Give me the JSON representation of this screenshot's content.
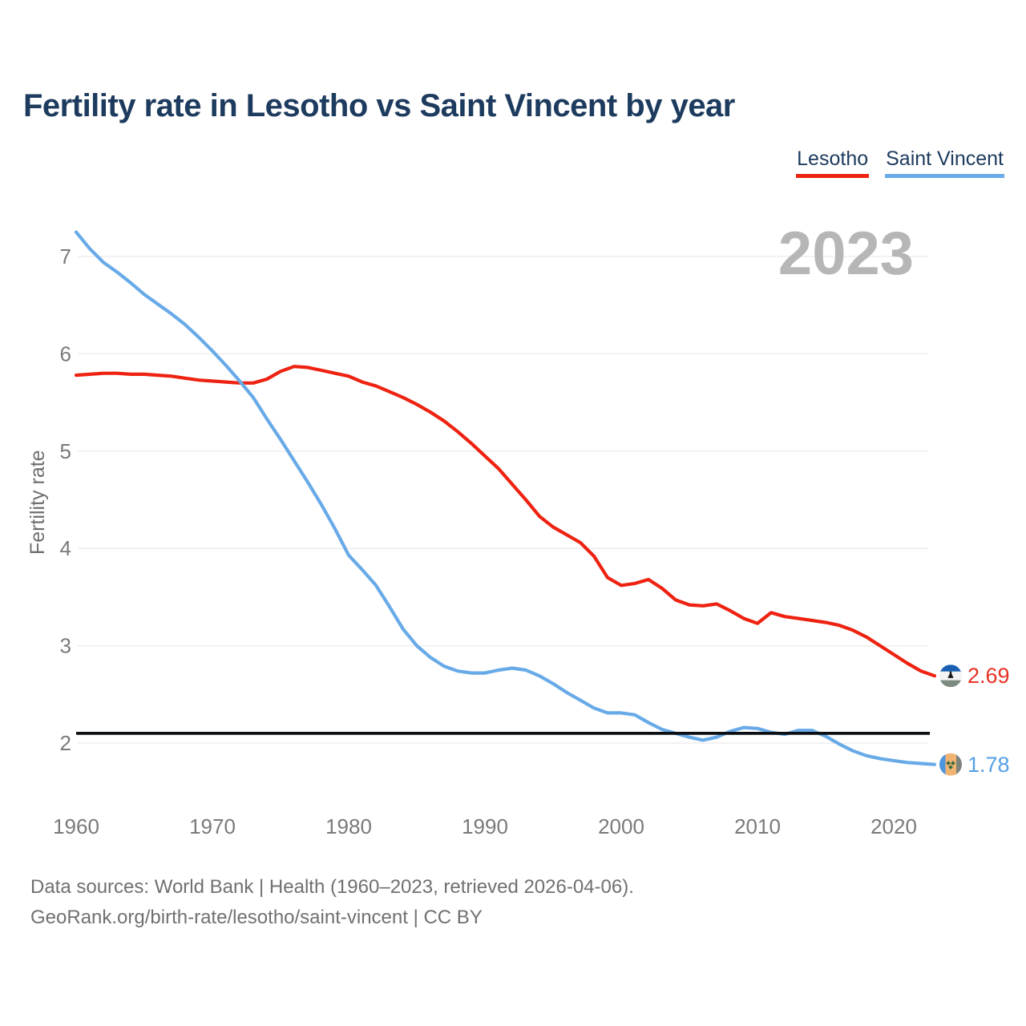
{
  "title": "Fertility rate in Lesotho vs Saint Vincent by year",
  "watermark": "2023",
  "legend": [
    {
      "label": "Lesotho",
      "color": "#ee2211"
    },
    {
      "label": "Saint Vincent",
      "color": "#68aae8"
    }
  ],
  "y_axis": {
    "label": "Fertility rate",
    "ticks": [
      7,
      6,
      5,
      4,
      3,
      2
    ]
  },
  "x_axis": {
    "ticks": [
      1960,
      1970,
      1980,
      1990,
      2000,
      2010,
      2020
    ]
  },
  "end_labels": [
    {
      "series": "Lesotho",
      "value": "2.69"
    },
    {
      "series": "Saint Vincent",
      "value": "1.78"
    }
  ],
  "footer": {
    "line1": "Data sources: World Bank | Health (1960–2023, retrieved 2026-04-06).",
    "line2": "GeoRank.org/birth-rate/lesotho/saint-vincent | CC BY"
  },
  "chart_data": {
    "type": "line",
    "title": "Fertility rate in Lesotho vs Saint Vincent by year",
    "xlabel": "",
    "ylabel": "Fertility rate",
    "xlim": [
      1960,
      2023
    ],
    "ylim": [
      1.6,
      7.4
    ],
    "grid": "horizontal",
    "legend_position": "top-right",
    "reference_line": 2.1,
    "years": [
      1960,
      1961,
      1962,
      1963,
      1964,
      1965,
      1966,
      1967,
      1968,
      1969,
      1970,
      1971,
      1972,
      1973,
      1974,
      1975,
      1976,
      1977,
      1978,
      1979,
      1980,
      1981,
      1982,
      1983,
      1984,
      1985,
      1986,
      1987,
      1988,
      1989,
      1990,
      1991,
      1992,
      1993,
      1994,
      1995,
      1996,
      1997,
      1998,
      1999,
      2000,
      2001,
      2002,
      2003,
      2004,
      2005,
      2006,
      2007,
      2008,
      2009,
      2010,
      2011,
      2012,
      2013,
      2014,
      2015,
      2016,
      2017,
      2018,
      2019,
      2020,
      2021,
      2022,
      2023
    ],
    "series": [
      {
        "name": "Lesotho",
        "color": "#ee2211",
        "values": [
          5.78,
          5.79,
          5.8,
          5.8,
          5.79,
          5.79,
          5.78,
          5.77,
          5.75,
          5.73,
          5.72,
          5.71,
          5.7,
          5.7,
          5.74,
          5.82,
          5.87,
          5.86,
          5.83,
          5.8,
          5.77,
          5.71,
          5.67,
          5.61,
          5.55,
          5.48,
          5.4,
          5.31,
          5.2,
          5.08,
          4.95,
          4.82,
          4.66,
          4.5,
          4.33,
          4.22,
          4.14,
          4.06,
          3.92,
          3.7,
          3.62,
          3.64,
          3.68,
          3.59,
          3.47,
          3.42,
          3.41,
          3.43,
          3.36,
          3.28,
          3.23,
          3.34,
          3.3,
          3.28,
          3.26,
          3.24,
          3.21,
          3.16,
          3.09,
          3.0,
          2.91,
          2.82,
          2.74,
          2.69
        ]
      },
      {
        "name": "Saint Vincent",
        "color": "#68aae8",
        "values": [
          7.25,
          7.08,
          6.94,
          6.84,
          6.73,
          6.61,
          6.51,
          6.41,
          6.3,
          6.17,
          6.03,
          5.88,
          5.72,
          5.55,
          5.33,
          5.12,
          4.9,
          4.68,
          4.45,
          4.2,
          3.93,
          3.78,
          3.62,
          3.4,
          3.17,
          3.0,
          2.88,
          2.79,
          2.74,
          2.72,
          2.72,
          2.75,
          2.77,
          2.75,
          2.69,
          2.61,
          2.52,
          2.44,
          2.36,
          2.31,
          2.31,
          2.29,
          2.21,
          2.14,
          2.1,
          2.06,
          2.03,
          2.06,
          2.12,
          2.16,
          2.15,
          2.11,
          2.09,
          2.13,
          2.13,
          2.07,
          1.99,
          1.92,
          1.87,
          1.84,
          1.82,
          1.8,
          1.79,
          1.78
        ]
      }
    ]
  }
}
